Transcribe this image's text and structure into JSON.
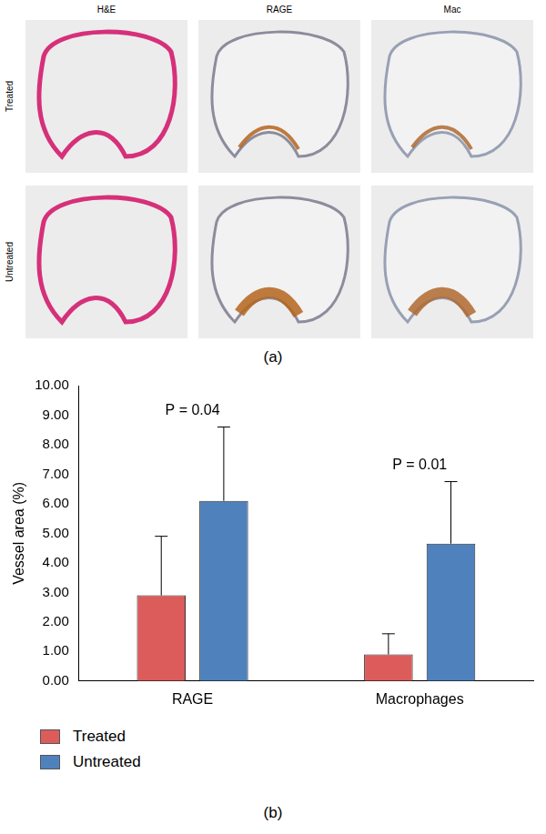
{
  "panel_a": {
    "label": "(a)",
    "columns": [
      "H&E",
      "RAGE",
      "Mac"
    ],
    "rows": [
      "Treated",
      "Untreated"
    ]
  },
  "chart_data": {
    "type": "bar",
    "label": "(b)",
    "categories": [
      "RAGE",
      "Macrophages"
    ],
    "ylabel": "Vessel area (%)",
    "ylim": [
      0,
      10
    ],
    "yticks": [
      {
        "value": 0,
        "label": "0.00"
      },
      {
        "value": 1,
        "label": "1.00"
      },
      {
        "value": 2,
        "label": "2.00"
      },
      {
        "value": 3,
        "label": "3.00"
      },
      {
        "value": 4,
        "label": "4.00"
      },
      {
        "value": 5,
        "label": "5.00"
      },
      {
        "value": 6,
        "label": "6.00"
      },
      {
        "value": 7,
        "label": "7.00"
      },
      {
        "value": 8,
        "label": "8.00"
      },
      {
        "value": 9,
        "label": "9.00"
      },
      {
        "value": 10,
        "label": "10.00"
      }
    ],
    "grid": false,
    "legend": "bottom-left",
    "series": [
      {
        "name": "Treated",
        "color": "#dc5c5c",
        "values": [
          2.9,
          0.9
        ],
        "errors": [
          2.0,
          0.7
        ]
      },
      {
        "name": "Untreated",
        "color": "#4f81bd",
        "values": [
          6.1,
          4.65
        ],
        "errors": [
          2.5,
          2.1
        ]
      }
    ],
    "annotations": [
      {
        "category": "RAGE",
        "text": "P = 0.04"
      },
      {
        "category": "Macrophages",
        "text": "P = 0.01"
      }
    ]
  }
}
